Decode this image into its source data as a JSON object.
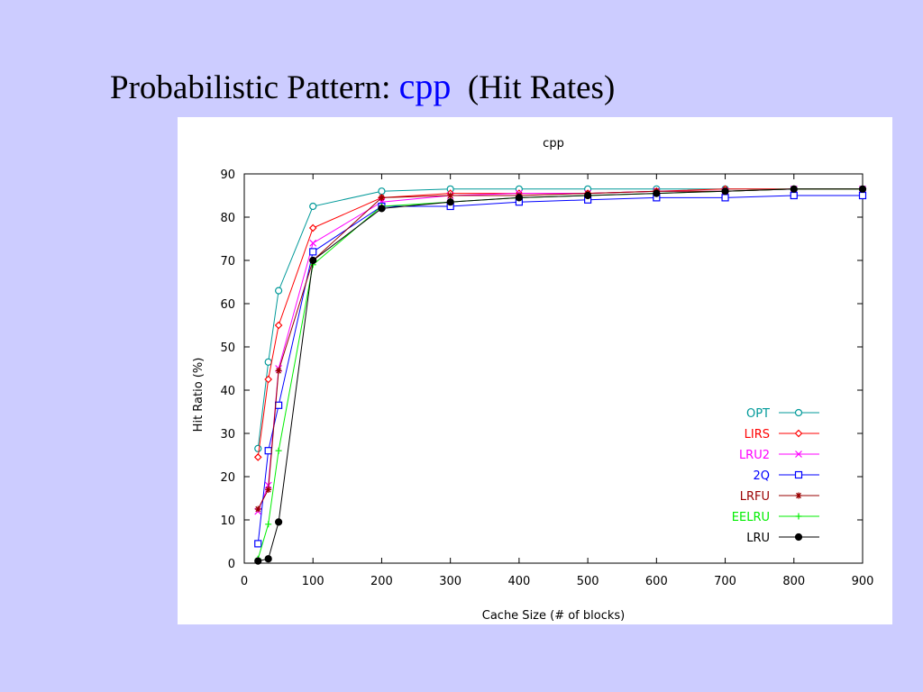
{
  "slide": {
    "title_prefix": "Probabilistic Pattern:",
    "title_accent": "cpp",
    "title_suffix": "(Hit Rates)",
    "accent_color": "#0000ff",
    "background": "#ccccff"
  },
  "chart_data": {
    "type": "line",
    "title": "cpp",
    "xlabel": "Cache Size (# of blocks)",
    "ylabel": "Hit Ratio (%)",
    "x_ticks": [
      0,
      100,
      200,
      300,
      400,
      500,
      600,
      700,
      800,
      900
    ],
    "y_ticks": [
      0,
      10,
      20,
      30,
      40,
      50,
      60,
      70,
      80,
      90
    ],
    "xlim": [
      0,
      900
    ],
    "ylim": [
      0,
      90
    ],
    "grid": false,
    "legend_position": "bottom-right",
    "x": [
      20,
      35,
      50,
      100,
      200,
      300,
      400,
      500,
      600,
      700,
      800,
      900
    ],
    "series": [
      {
        "name": "OPT",
        "color": "#009999",
        "marker": "circle",
        "values": [
          26.5,
          46.5,
          63,
          82.5,
          86,
          86.5,
          86.5,
          86.5,
          86.5,
          86.5,
          86.5,
          86.5
        ]
      },
      {
        "name": "LIRS",
        "color": "#ff0000",
        "marker": "diamond",
        "values": [
          24.5,
          42.5,
          55,
          77.5,
          84.5,
          85.5,
          85.5,
          85.5,
          86,
          86.5,
          86.5,
          86.5
        ]
      },
      {
        "name": "LRU2",
        "color": "#ff00ff",
        "marker": "x",
        "values": [
          12,
          18,
          45,
          74,
          83.5,
          85,
          85.5,
          85.5,
          86,
          86,
          86.5,
          86.5
        ]
      },
      {
        "name": "2Q",
        "color": "#0000ff",
        "marker": "square",
        "values": [
          4.5,
          26,
          36.5,
          72,
          82.5,
          82.5,
          83.5,
          84,
          84.5,
          84.5,
          85,
          85
        ]
      },
      {
        "name": "LRFU",
        "color": "#990000",
        "marker": "asterisk",
        "values": [
          12.5,
          17,
          44.5,
          70,
          84.5,
          85,
          85,
          85.5,
          86,
          86,
          86.5,
          86.5
        ]
      },
      {
        "name": "EELRU",
        "color": "#00ee00",
        "marker": "plus",
        "values": [
          1,
          9,
          26,
          69,
          82.5,
          83.5,
          84.5,
          85,
          85.5,
          86,
          86.5,
          86.5
        ]
      },
      {
        "name": "LRU",
        "color": "#000000",
        "marker": "filled-circle",
        "values": [
          0.5,
          1,
          9.5,
          70,
          82,
          83.5,
          84.5,
          85,
          85.5,
          86,
          86.5,
          86.5
        ]
      }
    ]
  }
}
